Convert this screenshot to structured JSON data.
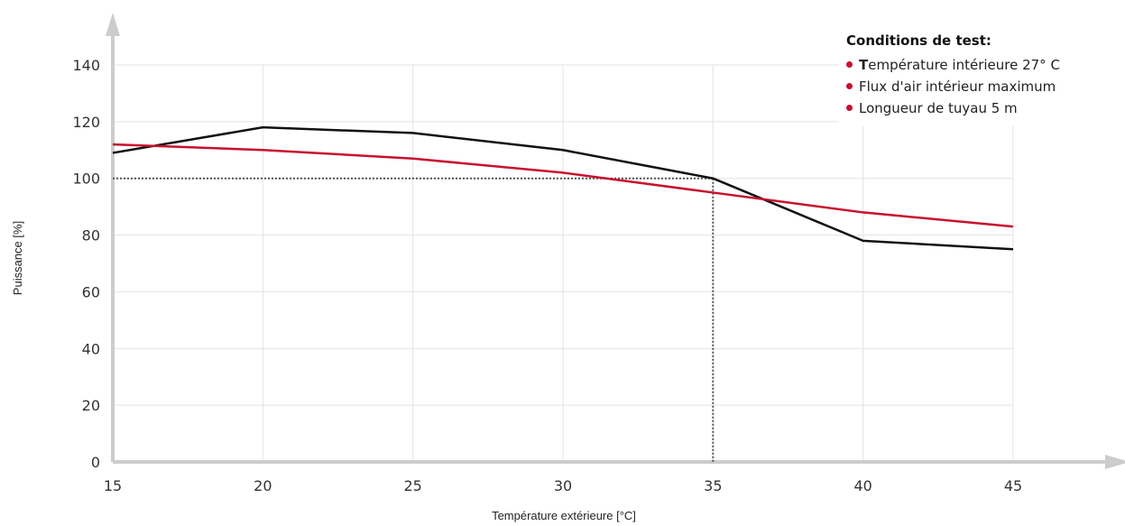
{
  "chart_data": {
    "type": "line",
    "title": "",
    "xlabel": "Température extérieure [°C]",
    "ylabel": "Puissance [%]",
    "x": [
      15,
      20,
      25,
      30,
      35,
      40,
      45
    ],
    "xlim": [
      15,
      45
    ],
    "ylim": [
      0,
      140
    ],
    "xticks": [
      "15",
      "20",
      "25",
      "30",
      "35",
      "40",
      "45"
    ],
    "yticks": [
      "0",
      "20",
      "40",
      "60",
      "80",
      "100",
      "120",
      "140"
    ],
    "grid": true,
    "legend_position": "top-right",
    "series": [
      {
        "color": "#111111",
        "values": [
          109,
          118,
          116,
          110,
          100,
          78,
          75
        ]
      },
      {
        "color": "#c8102e",
        "values": [
          112,
          110,
          107,
          102,
          95,
          88,
          83
        ]
      }
    ],
    "reference_lines": {
      "x": 35,
      "y": 100,
      "style": "dotted"
    }
  },
  "legend": {
    "title": "Conditions de test:",
    "items": [
      {
        "bold": "T",
        "text": "empérature intérieure 27° C"
      },
      {
        "bold": "",
        "text": "Flux d'air intérieur maximum"
      },
      {
        "bold": "",
        "text": "Longueur de tuyau 5 m"
      }
    ],
    "bullet_color": "#c8102e"
  },
  "colors": {
    "grid": "#e3e3e3",
    "axis": "#cccccc",
    "reference": "#555555"
  }
}
